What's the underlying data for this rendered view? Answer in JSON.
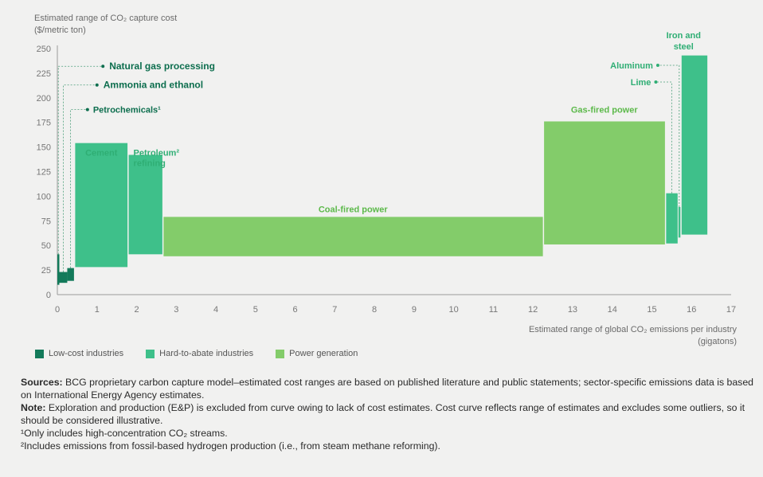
{
  "chart_data": {
    "type": "bar",
    "ylabel_line1": "Estimated range of CO₂ capture cost",
    "ylabel_line2": "($/metric ton)",
    "xlabel_line1": "Estimated range of global CO₂ emissions per industry",
    "xlabel_line2": "(gigatons)",
    "xlim": [
      0,
      17
    ],
    "ylim": [
      0,
      250
    ],
    "x_ticks": [
      "0",
      "1",
      "2",
      "3",
      "4",
      "5",
      "6",
      "7",
      "8",
      "9",
      "10",
      "11",
      "12",
      "13",
      "14",
      "15",
      "16",
      "17"
    ],
    "y_ticks": [
      "0",
      "25",
      "50",
      "75",
      "100",
      "125",
      "150",
      "175",
      "200",
      "225",
      "250"
    ],
    "segments": [
      {
        "name": "Natural gas processing",
        "category": "low",
        "x0": 0.0,
        "x1": 0.05,
        "y0": 10,
        "y1": 41
      },
      {
        "name": "Ammonia and ethanol",
        "category": "low",
        "x0": 0.05,
        "x1": 0.25,
        "y0": 12,
        "y1": 23
      },
      {
        "name": "Petrochemicals¹",
        "category": "low",
        "x0": 0.25,
        "x1": 0.42,
        "y0": 14,
        "y1": 27
      },
      {
        "name": "Cement",
        "category": "hard",
        "x0": 0.45,
        "x1": 1.77,
        "y0": 28,
        "y1": 154
      },
      {
        "name": "Petroleum² refining",
        "category": "hard",
        "x0": 1.8,
        "x1": 2.65,
        "y0": 41,
        "y1": 142
      },
      {
        "name": "Coal-fired power",
        "category": "power",
        "x0": 2.68,
        "x1": 12.25,
        "y0": 39,
        "y1": 79
      },
      {
        "name": "Gas-fired power",
        "category": "power",
        "x0": 12.28,
        "x1": 15.33,
        "y0": 51,
        "y1": 176
      },
      {
        "name": "Lime",
        "category": "hard",
        "x0": 15.36,
        "x1": 15.65,
        "y0": 52,
        "y1": 103
      },
      {
        "name": "Aluminum",
        "category": "hard",
        "x0": 15.67,
        "x1": 15.72,
        "y0": 58,
        "y1": 89
      },
      {
        "name": "Iron and steel",
        "category": "hard",
        "x0": 15.75,
        "x1": 16.4,
        "y0": 61,
        "y1": 243
      }
    ],
    "labels": {
      "natural_gas": "Natural gas processing",
      "ammonia": "Ammonia and ethanol",
      "petrochemicals": "Petrochemicals¹",
      "cement": "Cement",
      "petroleum_1": "Petroleum²",
      "petroleum_2": "refining",
      "coal": "Coal-fired power",
      "gas": "Gas-fired power",
      "aluminum": "Aluminum",
      "lime": "Lime",
      "iron_1": "Iron and",
      "iron_2": "steel"
    },
    "grid": false,
    "legend_placement": "bottom-left"
  },
  "colors": {
    "low": "#137a5a",
    "hard": "#3ec08a",
    "power": "#83cc6a",
    "axis": "#9a9a9a",
    "leader": "#4a9e78"
  },
  "legend": {
    "low": "Low-cost industries",
    "hard": "Hard-to-abate industries",
    "power": "Power generation"
  },
  "notes": {
    "sources_label": "Sources:",
    "sources_text": " BCG proprietary carbon capture model–estimated cost ranges are based on published literature and public statements; sector-specific emissions data is based on International Energy Agency estimates.",
    "note_label": "Note:",
    "note_text": " Exploration and production (E&P) is excluded from curve owing to lack of cost estimates. Cost curve reflects range of estimates and excludes some outliers, so it should be considered illustrative.",
    "footnote1": "¹Only includes high-concentration CO₂ streams.",
    "footnote2": "²Includes emissions from fossil-based hydrogen production (i.e., from steam methane reforming)."
  }
}
